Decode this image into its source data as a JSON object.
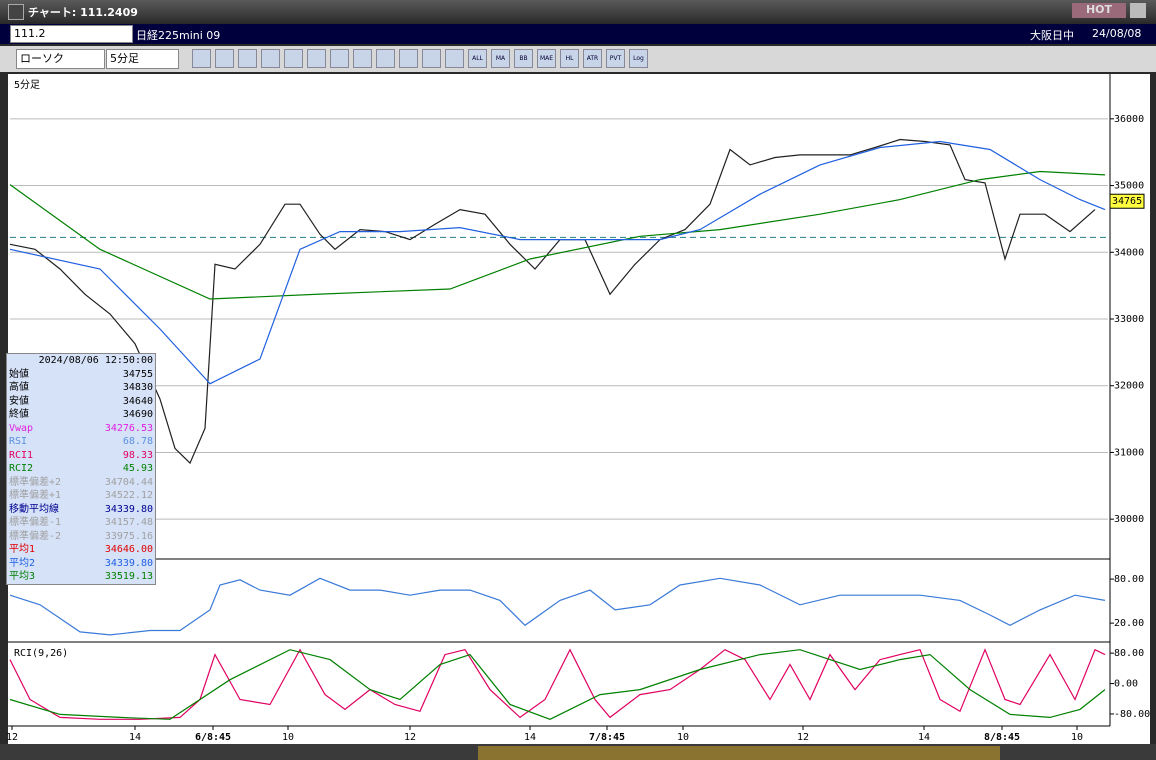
{
  "window": {
    "title": "チャート: 111.2409",
    "hot": "HOT"
  },
  "header": {
    "symbol": "111.2",
    "name": "日経225mini 09",
    "market": "大阪日中",
    "date": "24/08/08"
  },
  "toolbar": {
    "chart_type": "ローソク",
    "interval": "5分足",
    "icons": [
      "ALL",
      "MA",
      "BB",
      "MAE",
      "HL",
      "ATR",
      "PVT",
      "Log"
    ]
  },
  "info": {
    "datetime": "2024/08/06  12:50:00",
    "rows": [
      {
        "label": "始値",
        "value": "34755",
        "color": "#000000"
      },
      {
        "label": "高値",
        "value": "34830",
        "color": "#000000"
      },
      {
        "label": "安値",
        "value": "34640",
        "color": "#000000"
      },
      {
        "label": "終値",
        "value": "34690",
        "color": "#000000"
      },
      {
        "label": "Vwap",
        "value": "34276.53",
        "color": "#e020e0"
      },
      {
        "label": "RSI",
        "value": "68.78",
        "color": "#5a90e0"
      },
      {
        "label": "RCI1",
        "value": "98.33",
        "color": "#e00060"
      },
      {
        "label": "RCI2",
        "value": "45.93",
        "color": "#008000"
      },
      {
        "label": "標準偏差+2",
        "value": "34704.44",
        "color": "#a0a0a0"
      },
      {
        "label": "標準偏差+1",
        "value": "34522.12",
        "color": "#a0a0a0"
      },
      {
        "label": "移動平均線",
        "value": "34339.80",
        "color": "#000090"
      },
      {
        "label": "標準偏差-1",
        "value": "34157.48",
        "color": "#a0a0a0"
      },
      {
        "label": "標準偏差-2",
        "value": "33975.16",
        "color": "#a0a0a0"
      },
      {
        "label": "平均1",
        "value": "34646.00",
        "color": "#e00000"
      },
      {
        "label": "平均2",
        "value": "34339.80",
        "color": "#2060e0"
      },
      {
        "label": "平均3",
        "value": "33519.13",
        "color": "#008000"
      }
    ]
  },
  "chart_data": [
    {
      "type": "line",
      "panel_label": "5分足",
      "xlim": [
        0,
        219.6
      ],
      "xticks": [
        {
          "value": 0.4,
          "label": "12"
        },
        {
          "value": 25,
          "label": "14"
        },
        {
          "value": 40.6,
          "label": "6/8:45"
        },
        {
          "value": 55.6,
          "label": "10"
        },
        {
          "value": 80,
          "label": "12"
        },
        {
          "value": 104,
          "label": "14"
        },
        {
          "value": 119.4,
          "label": "7/8:45"
        },
        {
          "value": 134.6,
          "label": "10"
        },
        {
          "value": 158.6,
          "label": "12"
        },
        {
          "value": 182.8,
          "label": "14"
        },
        {
          "value": 198.4,
          "label": "8/8:45"
        },
        {
          "value": 213.4,
          "label": "10"
        }
      ],
      "ylim": [
        29418,
        36672
      ],
      "yticks": [
        30000,
        31000,
        32000,
        33000,
        34000,
        35000,
        36000
      ],
      "last_price": 34765,
      "reference": 34224,
      "reference_color": "#208080",
      "series": [
        {
          "color": "#202020",
          "x": [
            0,
            5,
            10,
            15,
            20,
            25,
            30,
            33,
            36,
            39,
            41,
            45,
            50,
            55,
            58,
            62,
            65,
            70,
            75,
            80,
            85,
            90,
            95,
            100,
            105,
            110,
            115,
            120,
            125,
            130,
            135,
            140,
            144,
            148,
            153,
            158,
            163,
            168,
            173,
            178,
            183,
            188,
            191,
            195,
            199,
            202,
            207,
            212,
            217
          ],
          "values": [
            34120,
            34045,
            33750,
            33370,
            33075,
            32630,
            31800,
            31060,
            30840,
            31360,
            33820,
            33750,
            34120,
            34720,
            34720,
            34270,
            34045,
            34340,
            34310,
            34190,
            34420,
            34640,
            34570,
            34120,
            33750,
            34190,
            34190,
            33370,
            33820,
            34190,
            34340,
            34720,
            35540,
            35310,
            35420,
            35460,
            35460,
            35460,
            35570,
            35690,
            35660,
            35610,
            35090,
            35040,
            33900,
            34570,
            34570,
            34310,
            34640
          ]
        },
        {
          "color": "#008000",
          "x": [
            0,
            18,
            40,
            62,
            88,
            104,
            126,
            142,
            162,
            178,
            194,
            206,
            219
          ],
          "values": [
            35015,
            34045,
            33300,
            33373,
            33450,
            33900,
            34240,
            34340,
            34570,
            34790,
            35090,
            35210,
            35160
          ]
        },
        {
          "color": "#2060e0",
          "x": [
            0,
            18,
            30,
            40,
            50,
            58,
            66,
            78,
            90,
            102,
            110,
            122,
            130,
            138,
            150,
            162,
            174,
            186,
            196,
            206,
            214,
            219
          ],
          "values": [
            34045,
            33750,
            32850,
            32030,
            32400,
            34045,
            34310,
            34310,
            34370,
            34190,
            34190,
            34190,
            34190,
            34340,
            34870,
            35310,
            35570,
            35660,
            35540,
            35090,
            34790,
            34640
          ]
        }
      ]
    },
    {
      "type": "line",
      "xlim": [
        0,
        219.6
      ],
      "ylim": [
        -3,
        106
      ],
      "yticks": [
        {
          "value": 80,
          "label": "80.00"
        },
        {
          "value": 20,
          "label": "20.00"
        }
      ],
      "series": [
        {
          "color": "#3a7ad8",
          "x": [
            0,
            6,
            14,
            20,
            28,
            34,
            40,
            42,
            46,
            50,
            56,
            62,
            68,
            74,
            80,
            86,
            92,
            98,
            103,
            110,
            116,
            121,
            128,
            134,
            142,
            150,
            158,
            166,
            174,
            182,
            190,
            196,
            200,
            206,
            213,
            219
          ],
          "values": [
            58,
            45,
            8,
            4,
            10,
            10,
            38,
            72,
            79,
            65,
            58,
            81,
            65,
            65,
            58,
            65,
            65,
            51,
            17,
            51,
            65,
            38,
            45,
            72,
            81,
            72,
            45,
            58,
            58,
            58,
            51,
            31,
            17,
            38,
            58,
            51
          ]
        }
      ]
    },
    {
      "type": "line",
      "panel_label": "RCI(9,26)",
      "xlim": [
        0,
        219.6
      ],
      "ylim": [
        -109,
        104
      ],
      "yticks": [
        {
          "value": 80,
          "label": "80.00"
        },
        {
          "value": 0,
          "label": "0.00"
        },
        {
          "value": -80,
          "label": "-80.00"
        }
      ],
      "series": [
        {
          "color": "#e00060",
          "x": [
            0,
            4,
            10,
            18,
            26,
            34,
            38,
            41,
            46,
            52,
            58,
            63,
            67,
            72,
            77,
            82,
            87,
            91,
            96,
            102,
            107,
            112,
            117,
            120,
            126,
            132,
            138,
            143,
            147,
            152,
            156,
            160,
            164,
            169,
            174,
            178,
            182,
            186,
            190,
            195,
            199,
            202,
            208,
            213,
            217,
            219
          ],
          "values": [
            63,
            -42,
            -89,
            -94,
            -94,
            -89,
            -42,
            76,
            -42,
            -55,
            89,
            -29,
            -68,
            -16,
            -55,
            -73,
            76,
            89,
            -16,
            -89,
            -42,
            89,
            -42,
            -89,
            -29,
            -16,
            37,
            89,
            63,
            -42,
            50,
            -42,
            76,
            -16,
            63,
            76,
            89,
            -42,
            -73,
            89,
            -42,
            -55,
            76,
            -42,
            89,
            76
          ]
        },
        {
          "color": "#008000",
          "x": [
            0,
            10,
            22,
            32,
            44,
            56,
            64,
            72,
            78,
            86,
            92,
            100,
            108,
            118,
            126,
            138,
            150,
            158,
            170,
            178,
            184,
            192,
            200,
            208,
            214,
            219
          ],
          "values": [
            -42,
            -81,
            -89,
            -94,
            10,
            89,
            63,
            -16,
            -42,
            50,
            76,
            -55,
            -94,
            -29,
            -16,
            37,
            76,
            89,
            37,
            63,
            76,
            -16,
            -81,
            -89,
            -68,
            -16
          ]
        }
      ]
    }
  ]
}
